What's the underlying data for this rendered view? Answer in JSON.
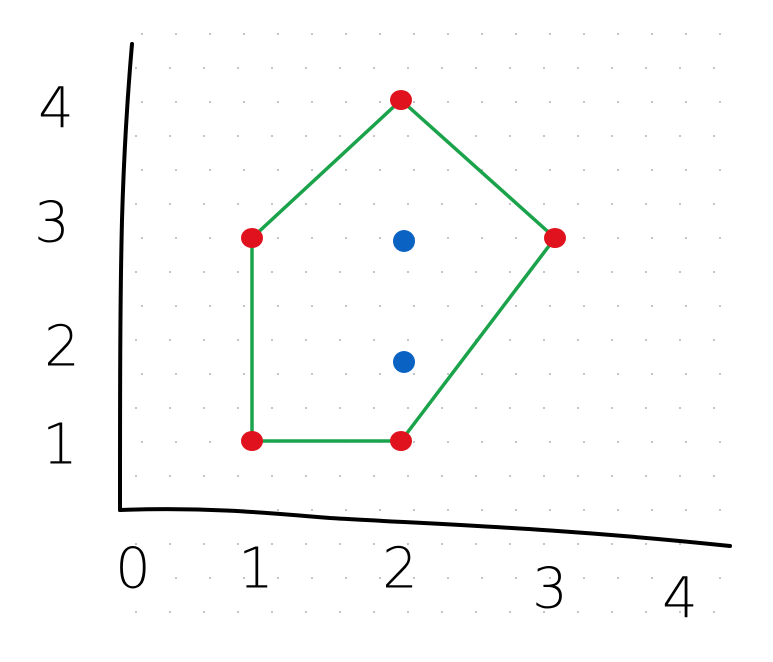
{
  "diagram": {
    "x_ticks": [
      "0",
      "1",
      "2",
      "3",
      "4"
    ],
    "y_ticks": [
      "1",
      "2",
      "3",
      "4"
    ],
    "hull_color": "#1aa34a",
    "vertex_color": "#e0121e",
    "interior_color": "#0a62c2",
    "vertices": [
      {
        "x": 2,
        "y": 4
      },
      {
        "x": 3,
        "y": 3
      },
      {
        "x": 2,
        "y": 1
      },
      {
        "x": 1,
        "y": 1
      },
      {
        "x": 1,
        "y": 3
      }
    ],
    "interior_points": [
      {
        "x": 2,
        "y": 3
      },
      {
        "x": 2,
        "y": 2
      }
    ]
  }
}
